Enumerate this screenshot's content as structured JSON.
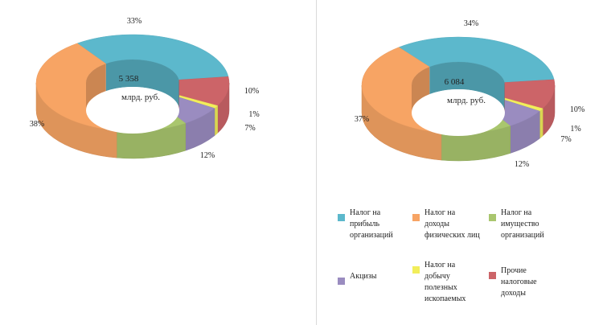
{
  "chart_data": [
    {
      "type": "pie",
      "center_value": "5 358",
      "center_unit": "млрд. руб.",
      "categories": [
        "Налог на прибыль организаций",
        "Прочие налоговые доходы",
        "Налог на добычу полезных ископаемых",
        "Акцизы",
        "Налог на имущество организаций",
        "Налог на доходы физических лиц"
      ],
      "values": [
        33,
        10,
        1,
        7,
        12,
        38
      ],
      "labels": [
        "33%",
        "10%",
        "1%",
        "7%",
        "12%",
        "38%"
      ]
    },
    {
      "type": "pie",
      "center_value": "6 084",
      "center_unit": "млрд. руб.",
      "categories": [
        "Налог на прибыль организаций",
        "Прочие налоговые доходы",
        "Налог на добычу полезных ископаемых",
        "Акцизы",
        "Налог на имущество организаций",
        "Налог на доходы физических лиц"
      ],
      "values": [
        34,
        10,
        1,
        7,
        12,
        37
      ],
      "labels": [
        "34%",
        "10%",
        "1%",
        "7%",
        "12%",
        "37%"
      ]
    }
  ],
  "legend": [
    {
      "label": "Налог на прибыль организаций",
      "color": "#5cb8cc"
    },
    {
      "label": "Налог на доходы физических лиц",
      "color": "#f7a464"
    },
    {
      "label": "Налог на имущество организаций",
      "color": "#a9c66e"
    },
    {
      "label": "Акцизы",
      "color": "#9a8cc0"
    },
    {
      "label": "Налог на добычу полезных ископаемых",
      "color": "#f2ee5a"
    },
    {
      "label": "Прочие налоговые доходы",
      "color": "#cc6468"
    }
  ],
  "colors": {
    "Налог на прибыль организаций": "#5cb8cc",
    "Прочие налоговые доходы": "#cc6468",
    "Налог на добычу полезных ископаемых": "#f2ee5a",
    "Акцизы": "#9a8cc0",
    "Налог на имущество организаций": "#a9c66e",
    "Налог на доходы физических лиц": "#f7a464"
  }
}
